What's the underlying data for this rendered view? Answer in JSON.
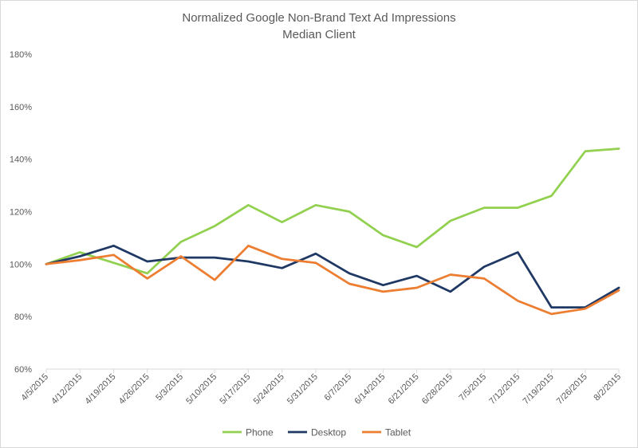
{
  "chart_data": {
    "type": "line",
    "title": "Normalized Google Non-Brand Text Ad Impressions",
    "subtitle": "Median Client",
    "xlabel": "",
    "ylabel": "",
    "ylim": [
      60,
      180
    ],
    "y_ticks": [
      60,
      80,
      100,
      120,
      140,
      160,
      180
    ],
    "y_tick_labels": [
      "60%",
      "80%",
      "100%",
      "120%",
      "140%",
      "160%",
      "180%"
    ],
    "categories": [
      "4/5/2015",
      "4/12/2015",
      "4/19/2015",
      "4/26/2015",
      "5/3/2015",
      "5/10/2015",
      "5/17/2015",
      "5/24/2015",
      "5/31/2015",
      "6/7/2015",
      "6/14/2015",
      "6/21/2015",
      "6/28/2015",
      "7/5/2015",
      "7/12/2015",
      "7/19/2015",
      "7/26/2015",
      "8/2/2015"
    ],
    "series": [
      {
        "name": "Phone",
        "color": "#92d050",
        "values": [
          100,
          104.5,
          100.5,
          96.5,
          108.5,
          114.5,
          122.5,
          116,
          122.5,
          120,
          111,
          106.5,
          116.5,
          121.5,
          121.5,
          126,
          143,
          144
        ]
      },
      {
        "name": "Desktop",
        "color": "#1f3864",
        "values": [
          100,
          103,
          107,
          101,
          102.5,
          102.5,
          101,
          98.5,
          104,
          96.5,
          92,
          95.5,
          89.5,
          99,
          104.5,
          83.5,
          83.5,
          91
        ]
      },
      {
        "name": "Tablet",
        "color": "#ed7d31",
        "values": [
          100,
          101.5,
          103.5,
          94.5,
          103,
          94,
          107,
          102,
          100.5,
          92.5,
          89.5,
          91,
          96,
          94.5,
          86,
          81,
          83,
          90
        ]
      }
    ],
    "grid": false,
    "legend_position": "bottom"
  }
}
